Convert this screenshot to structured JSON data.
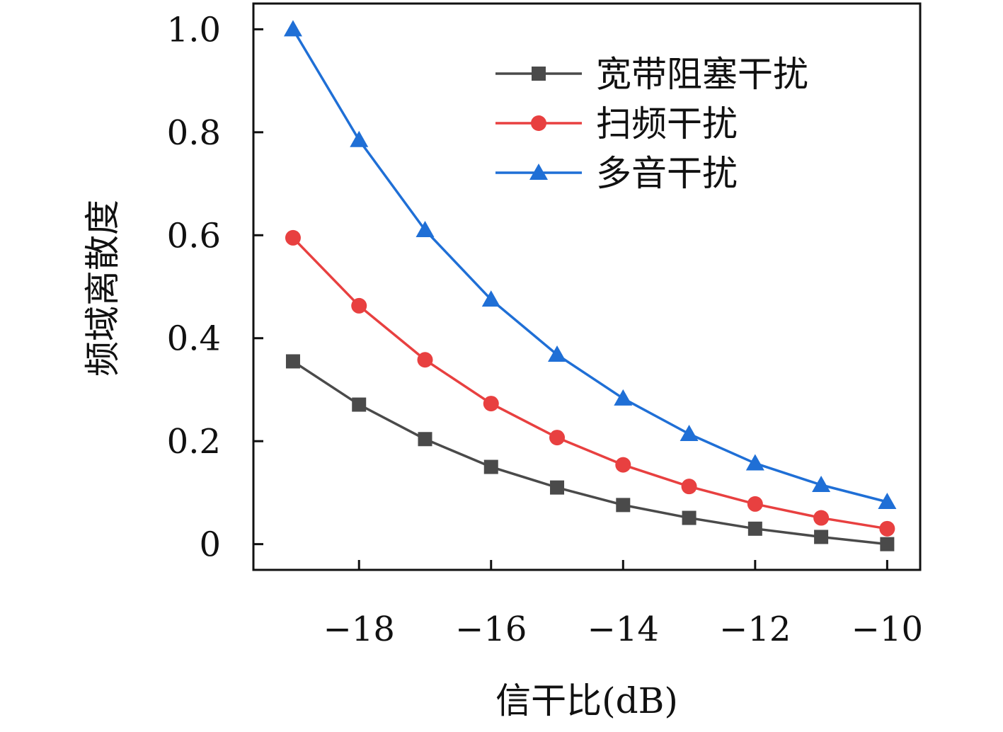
{
  "chart_data": {
    "type": "line",
    "title": "",
    "xlabel": "信干比(dB)",
    "ylabel": "频域离散度",
    "xlim": [
      -19.6,
      -9.5
    ],
    "ylim": [
      -0.05,
      1.05
    ],
    "x": [
      -19,
      -18,
      -17,
      -16,
      -15,
      -14,
      -13,
      -12,
      -11,
      -10
    ],
    "xticks": [
      -18,
      -16,
      -14,
      -12,
      -10
    ],
    "xtick_labels": [
      "−18",
      "−16",
      "−14",
      "−12",
      "−10"
    ],
    "yticks": [
      0,
      0.2,
      0.4,
      0.6,
      0.8,
      1.0
    ],
    "ytick_labels": [
      "0",
      "0.2",
      "0.4",
      "0.6",
      "0.8",
      "1.0"
    ],
    "grid": false,
    "legend_position": "top-right",
    "series": [
      {
        "name": "宽带阻塞干扰",
        "color": "#4a4a4a",
        "marker": "square",
        "values": [
          0.355,
          0.271,
          0.204,
          0.15,
          0.11,
          0.076,
          0.051,
          0.03,
          0.014,
          0.0
        ]
      },
      {
        "name": "扫频干扰",
        "color": "#e84040",
        "marker": "circle",
        "values": [
          0.595,
          0.463,
          0.358,
          0.273,
          0.207,
          0.154,
          0.112,
          0.078,
          0.051,
          0.03
        ]
      },
      {
        "name": "多音干扰",
        "color": "#1f6fd6",
        "marker": "triangle",
        "values": [
          1.0,
          0.785,
          0.61,
          0.475,
          0.368,
          0.283,
          0.214,
          0.157,
          0.115,
          0.082
        ]
      }
    ]
  }
}
